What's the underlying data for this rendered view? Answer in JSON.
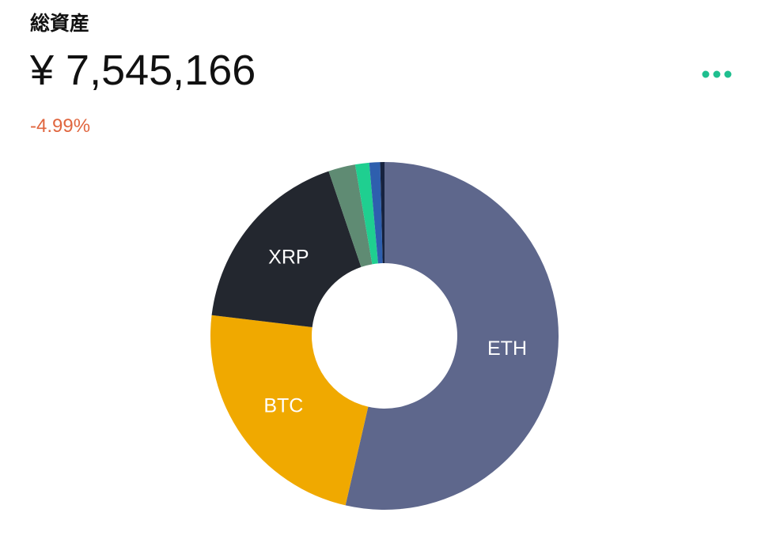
{
  "header": {
    "title": "総資産",
    "total": "¥ 7,545,166",
    "change": "-4.99%"
  },
  "chart_data": {
    "type": "donut",
    "categories": [
      "ETH",
      "BTC",
      "XRP",
      null,
      null,
      null,
      null
    ],
    "values": [
      53.6,
      23.3,
      17.9,
      2.5,
      1.3,
      1.0,
      0.4
    ],
    "colors": [
      "#5e678c",
      "#f0a900",
      "#23272f",
      "#5f8b73",
      "#1fcf90",
      "#2e5fae",
      "#17233f"
    ]
  }
}
